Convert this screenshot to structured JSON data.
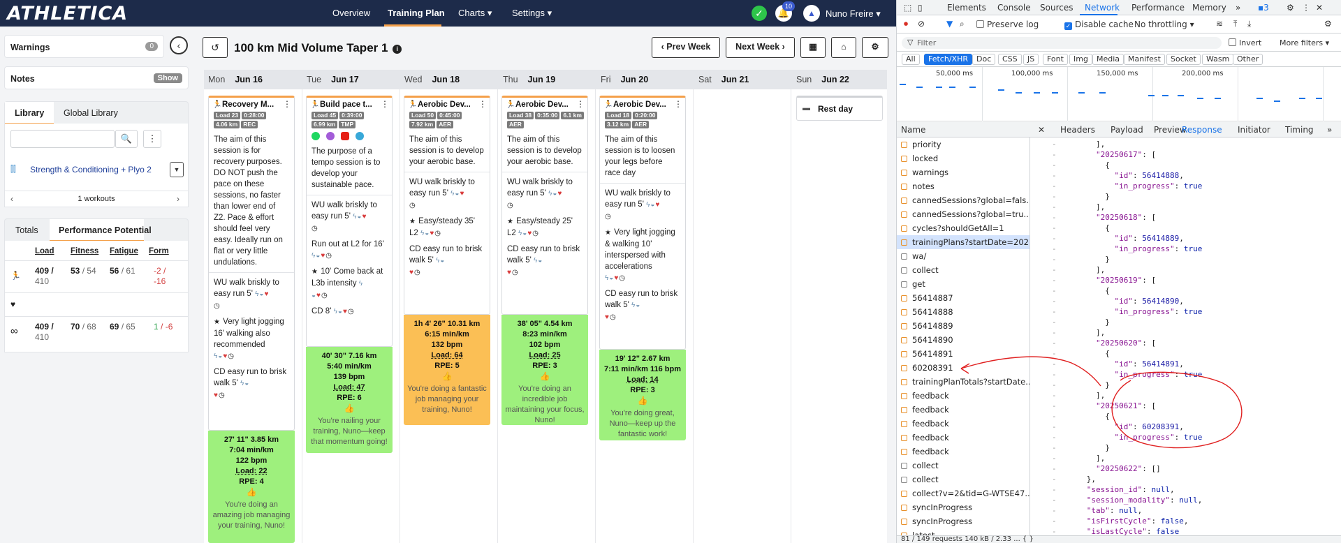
{
  "app": {
    "logo": "ATHLETICA",
    "nav": [
      "Overview",
      "Training Plan",
      "Charts ▾",
      "Settings ▾"
    ],
    "notification_count": "10",
    "user_name": "Nuno Freire ▾"
  },
  "left_panel": {
    "warnings_label": "Warnings",
    "warnings_count": "0",
    "notes_label": "Notes",
    "notes_show": "Show",
    "library_tabs": [
      "Library",
      "Global Library"
    ],
    "search_placeholder": "",
    "plan_name": "Strength & Conditioning + Plyo 2",
    "workout_count": "1 workouts",
    "perf_tabs": [
      "Totals",
      "Performance Potential"
    ],
    "perf_headers": [
      "Load",
      "Fitness",
      "Fatigue",
      "Form"
    ],
    "perf_rows": [
      {
        "icon": "run-icon",
        "load": "409 /",
        "load2": "410",
        "fitness": "53",
        "fitness_max": "/ 54",
        "fatigue": "56",
        "fatigue_max": "/ 61",
        "form": "-2 /",
        "form2": "-16",
        "form_sign": "neg"
      },
      {
        "icon": "heart-icon",
        "load": "",
        "load2": "",
        "fitness": "",
        "fitness_max": "",
        "fatigue": "",
        "fatigue_max": "",
        "form": "",
        "form2": "",
        "form_sign": "neg"
      },
      {
        "icon": "infinity-icon",
        "load": "409 /",
        "load2": "410",
        "fitness": "70",
        "fitness_max": "/ 68",
        "fatigue": "69",
        "fatigue_max": "/ 65",
        "form": "1",
        "form2": "/ -6",
        "form_sign": "pos"
      }
    ]
  },
  "plan": {
    "title": "100 km Mid Volume Taper 1",
    "prev_week": "‹ Prev Week",
    "next_week": "Next Week ›"
  },
  "calendar": {
    "days": [
      {
        "dow": "Mon",
        "date": "Jun 16"
      },
      {
        "dow": "Tue",
        "date": "Jun 17"
      },
      {
        "dow": "Wed",
        "date": "Jun 18"
      },
      {
        "dow": "Thu",
        "date": "Jun 19"
      },
      {
        "dow": "Fri",
        "date": "Jun 20"
      },
      {
        "dow": "Sat",
        "date": "Jun 21"
      },
      {
        "dow": "Sun",
        "date": "Jun 22"
      }
    ],
    "rest_day": "Rest day",
    "cards": [
      {
        "title": "Recovery M...",
        "tags": [
          "Load 23",
          "0:28:00",
          "4.06 km",
          "REC"
        ],
        "desc": "The aim of this session is for recovery purposes. DO NOT push the pace on these sessions, no faster than lower end of Z2. Pace & effort should feel very easy. Ideally run on flat or very little undulations.",
        "steps": [
          "WU walk briskly to easy run 5'",
          "Very light jogging 16' walking also recommended",
          "CD easy run to brisk walk 5'"
        ],
        "summary": {
          "line1": "27' 11\"   3.85 km",
          "line2": "7:04 min/km",
          "line3": "122 bpm",
          "load": "Load: 22",
          "rpe": "RPE: 4",
          "msg": "You're doing an amazing job managing your training, Nuno!",
          "color": "green"
        }
      },
      {
        "title": "Build pace t...",
        "tags": [
          "Load 45",
          "0:39:00",
          "6.99 km",
          "TMP"
        ],
        "desc": "The purpose of a tempo session is to develop your sustainable pace.",
        "steps": [
          "WU walk briskly to easy run 5'",
          "Run out at L2 for 16'",
          "10' Come back at L3b intensity",
          "CD 8'"
        ],
        "summary": {
          "line1": "40' 30\"   7.16 km",
          "line2": "5:40 min/km",
          "line3": "139 bpm",
          "load": "Load: 47",
          "rpe": "RPE: 6",
          "msg": "You're nailing your training, Nuno—keep that momentum going!",
          "color": "green"
        }
      },
      {
        "title": "Aerobic Dev...",
        "tags": [
          "Load 50",
          "0:45:00",
          "7.92 km",
          "AER"
        ],
        "desc": "The aim of this session is to develop your aerobic base.",
        "steps": [
          "WU walk briskly to easy run 5'",
          "Easy/steady 35' L2",
          "CD easy run to brisk walk 5'"
        ],
        "summary": {
          "line1": "1h 4' 26\"   10.31 km",
          "line2": "6:15 min/km",
          "line3": "132 bpm",
          "load": "Load: 64",
          "rpe": "RPE: 5",
          "msg": "You're doing a fantastic job managing your training, Nuno!",
          "color": "orange"
        }
      },
      {
        "title": "Aerobic Dev...",
        "tags": [
          "Load 38",
          "0:35:00",
          "6.1 km",
          "AER"
        ],
        "desc": "The aim of this session is to develop your aerobic base.",
        "steps": [
          "WU walk briskly to easy run 5'",
          "Easy/steady 25' L2",
          "CD easy run to brisk walk 5'"
        ],
        "summary": {
          "line1": "38' 05\"   4.54 km",
          "line2": "8:23 min/km",
          "line3": "102 bpm",
          "load": "Load: 25",
          "rpe": "RPE: 3",
          "msg": "You're doing an incredible job maintaining your focus, Nuno!",
          "color": "green"
        }
      },
      {
        "title": "Aerobic Dev...",
        "tags": [
          "Load 18",
          "0:20:00",
          "3.12 km",
          "AER"
        ],
        "desc": "The aim of this session is to loosen your legs before race day",
        "steps": [
          "WU walk briskly to easy run 5'",
          "Very light jogging & walking 10' interspersed with accelerations",
          "CD easy run to brisk walk 5'"
        ],
        "summary": {
          "line1": "19' 12\"   2.67 km",
          "line2": "7:11 min/km   116 bpm",
          "line3": "",
          "load": "Load: 14",
          "rpe": "RPE: 3",
          "msg": "You're doing great, Nuno—keep up the fantastic work!",
          "color": "green"
        }
      }
    ]
  },
  "devtools": {
    "tabs": [
      "Elements",
      "Console",
      "Sources",
      "Network",
      "Performance",
      "Memory",
      "»"
    ],
    "issues_count": "3",
    "preserve_log": "Preserve log",
    "disable_cache": "Disable cache",
    "throttling": "No throttling",
    "filter_placeholder": "Filter",
    "invert": "Invert",
    "more_filters": "More filters ▾",
    "type_chips": [
      "All",
      "Fetch/XHR",
      "Doc",
      "CSS",
      "JS",
      "Font",
      "Img",
      "Media",
      "Manifest",
      "Socket",
      "Wasm",
      "Other"
    ],
    "timeline_labels": [
      "50,000 ms",
      "100,000 ms",
      "150,000 ms",
      "200,000 ms"
    ],
    "name_header": "Name",
    "requests": [
      "priority",
      "locked",
      "warnings",
      "notes",
      "cannedSessions?global=fals...",
      "cannedSessions?global=tru...",
      "cycles?shouldGetAll=1",
      "trainingPlans?startDate=202...",
      "wa/",
      "collect",
      "get",
      "56414887",
      "56414888",
      "56414889",
      "56414890",
      "56414891",
      "60208391",
      "trainingPlanTotals?startDate...",
      "feedback",
      "feedback",
      "feedback",
      "feedback",
      "feedback",
      "collect",
      "collect",
      "collect?v=2&tid=G-WTSE47...",
      "syncInProgress",
      "syncInProgress",
      "latest"
    ],
    "selected_request": 7,
    "detail_tabs": [
      "Headers",
      "Payload",
      "Preview",
      "Response",
      "Initiator",
      "Timing",
      "»"
    ],
    "status_text": "81 / 149 requests    140 kB / 2.33 ...   { }",
    "code_lines": [
      {
        "g": "-",
        "t": "        ],"
      },
      {
        "g": "-",
        "t": "        \"20250617\": ["
      },
      {
        "g": "-",
        "t": "          {"
      },
      {
        "g": "-",
        "t": "            \"id\": 56414888,"
      },
      {
        "g": "-",
        "t": "            \"in_progress\": true"
      },
      {
        "g": "-",
        "t": "          }"
      },
      {
        "g": "-",
        "t": "        ],"
      },
      {
        "g": "-",
        "t": "        \"20250618\": ["
      },
      {
        "g": "-",
        "t": "          {"
      },
      {
        "g": "-",
        "t": "            \"id\": 56414889,"
      },
      {
        "g": "-",
        "t": "            \"in_progress\": true"
      },
      {
        "g": "-",
        "t": "          }"
      },
      {
        "g": "-",
        "t": "        ],"
      },
      {
        "g": "-",
        "t": "        \"20250619\": ["
      },
      {
        "g": "-",
        "t": "          {"
      },
      {
        "g": "-",
        "t": "            \"id\": 56414890,"
      },
      {
        "g": "-",
        "t": "            \"in_progress\": true"
      },
      {
        "g": "-",
        "t": "          }"
      },
      {
        "g": "-",
        "t": "        ],"
      },
      {
        "g": "-",
        "t": "        \"20250620\": ["
      },
      {
        "g": "-",
        "t": "          {"
      },
      {
        "g": "-",
        "t": "            \"id\": 56414891,"
      },
      {
        "g": "-",
        "t": "            \"in_progress\": true"
      },
      {
        "g": "-",
        "t": "          }"
      },
      {
        "g": "-",
        "t": "        ],"
      },
      {
        "g": "-",
        "t": "        \"20250621\": ["
      },
      {
        "g": "-",
        "t": "          {"
      },
      {
        "g": "-",
        "t": "            \"id\": 60208391,"
      },
      {
        "g": "-",
        "t": "            \"in_progress\": true"
      },
      {
        "g": "-",
        "t": "          }"
      },
      {
        "g": "-",
        "t": "        ],"
      },
      {
        "g": "-",
        "t": "        \"20250622\": []"
      },
      {
        "g": "-",
        "t": "      },"
      },
      {
        "g": "-",
        "t": "      \"session_id\": null,"
      },
      {
        "g": "-",
        "t": "      \"session_modality\": null,"
      },
      {
        "g": "-",
        "t": "      \"tab\": null,"
      },
      {
        "g": "-",
        "t": "      \"isFirstCycle\": false,"
      },
      {
        "g": "-",
        "t": "      \"isLastCycle\": false"
      },
      {
        "g": "-",
        "t": "    }"
      }
    ]
  },
  "colors": {
    "accent": "#f4a04a",
    "navy": "#1d2b4a",
    "green": "#9ef07d",
    "orange": "#fbbf55",
    "devtools_blue": "#1a73e8",
    "annotation": "#e02020"
  }
}
